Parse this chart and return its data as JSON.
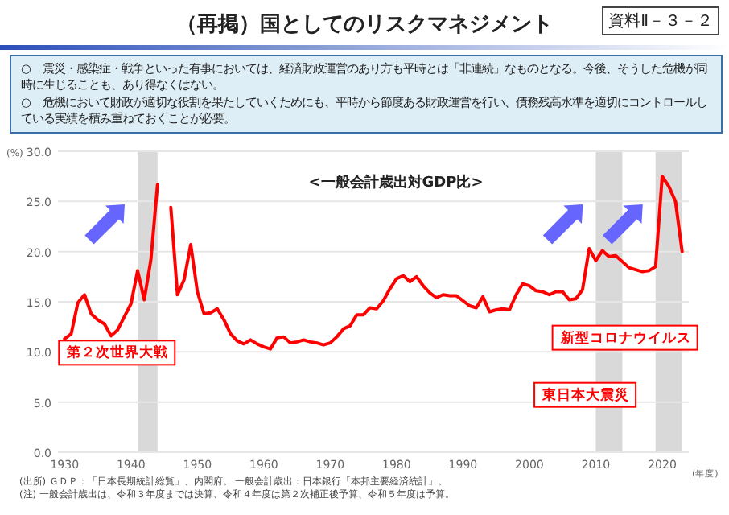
{
  "chart_data": {
    "type": "line",
    "title": "（再掲）国としてのリスクマネジメント",
    "subtitle": "<一般会計歳出対GDP比>",
    "ylabel": "(%)",
    "xlabel": "(年度)",
    "annotations": [
      "資料Ⅱ－３－２",
      "○　震災・感染症・戦争といった有事においては、経済財政運営のあり方も平時とは「非連続」なものとなる。今後、そうした危機が同時に生じることも、あり得なくはない。",
      "○　危機において財政が適切な役割を果たしていくためにも、平時から節度ある財政運営を行い、債務残高水準を適切にコントロールしている実績を積み重ねておくことが必要。",
      "(出所) ＧＤＰ：「日本長期統計総覧」、内閣府。 一般会計歳出：日本銀行「本邦主要経済統計」。",
      "(注) 一般会計歳出は、令和３年度までは決算、令和４年度は第２次補正後予算、令和５年度は予算。"
    ],
    "series": [
      {
        "color": "#ff0000",
        "x": [
          1930,
          1931,
          1932,
          1933,
          1934,
          1935,
          1936,
          1937,
          1938,
          1939,
          1940,
          1941,
          1942,
          1943,
          1944
        ],
        "values": [
          11.3,
          11.8,
          14.9,
          15.7,
          13.8,
          13.2,
          12.8,
          11.6,
          12.2,
          13.5,
          14.8,
          18.1,
          15.2,
          19.2,
          26.7
        ]
      },
      {
        "color": "#ff0000",
        "x": [
          1946,
          1947,
          1948,
          1949,
          1950,
          1951,
          1952,
          1953,
          1954,
          1955,
          1956,
          1957,
          1958,
          1959,
          1960,
          1961,
          1962,
          1963,
          1964,
          1965,
          1966,
          1967,
          1968,
          1969,
          1970,
          1971,
          1972,
          1973,
          1974,
          1975,
          1976,
          1977,
          1978,
          1979,
          1980,
          1981,
          1982,
          1983,
          1984,
          1985,
          1986,
          1987,
          1988,
          1989,
          1990,
          1991,
          1992,
          1993,
          1994,
          1995,
          1996,
          1997,
          1998,
          1999,
          2000,
          2001,
          2002,
          2003,
          2004,
          2005,
          2006,
          2007,
          2008,
          2009,
          2010,
          2011,
          2012,
          2013,
          2014,
          2015,
          2016,
          2017,
          2018,
          2019,
          2020,
          2021,
          2022,
          2023
        ],
        "values": [
          24.4,
          15.7,
          17.2,
          20.7,
          16.0,
          13.8,
          13.9,
          14.3,
          13.2,
          11.8,
          11.1,
          10.8,
          11.2,
          10.8,
          10.5,
          10.3,
          11.4,
          11.5,
          10.9,
          11.0,
          11.2,
          11.0,
          10.9,
          10.7,
          10.9,
          11.5,
          12.3,
          12.6,
          13.7,
          13.7,
          14.4,
          14.3,
          15.1,
          16.3,
          17.3,
          17.6,
          17.0,
          17.5,
          16.6,
          15.9,
          15.4,
          15.7,
          15.6,
          15.6,
          15.1,
          14.6,
          14.4,
          15.5,
          14.0,
          14.2,
          14.3,
          14.2,
          15.7,
          16.8,
          16.6,
          16.1,
          16.0,
          15.7,
          16.0,
          16.0,
          15.2,
          15.3,
          16.2,
          20.3,
          19.1,
          20.1,
          19.5,
          19.6,
          19.0,
          18.4,
          18.2,
          18.0,
          18.1,
          18.5,
          27.5,
          26.5,
          25.0,
          20.0
        ]
      }
    ],
    "bands": [
      {
        "axis": "x",
        "from": 1941,
        "to": 1944,
        "color": "#d9d9d9",
        "label": "第２次世界大戦"
      },
      {
        "axis": "x",
        "from": 2010,
        "to": 2014,
        "color": "#d9d9d9",
        "label": "東日本大震災"
      },
      {
        "axis": "x",
        "from": 2019,
        "to": 2023,
        "color": "#d9d9d9",
        "label": "新型コロナウイルス"
      }
    ],
    "xlim": [
      1929,
      2024
    ],
    "xticks": [
      1930,
      1940,
      1950,
      1960,
      1970,
      1980,
      1990,
      2000,
      2010,
      2020
    ],
    "ylim": [
      0,
      30
    ],
    "yticks": [
      {
        "value": 0,
        "label": "0.0"
      },
      {
        "value": 5,
        "label": "5.0"
      },
      {
        "value": 10,
        "label": "10.0"
      },
      {
        "value": 15,
        "label": "15.0"
      },
      {
        "value": 20,
        "label": "20.0"
      },
      {
        "value": 25,
        "label": "25.0"
      },
      {
        "value": 30,
        "label": "30.0"
      }
    ],
    "grid": "y",
    "marker": "none",
    "line_style": "solid"
  }
}
